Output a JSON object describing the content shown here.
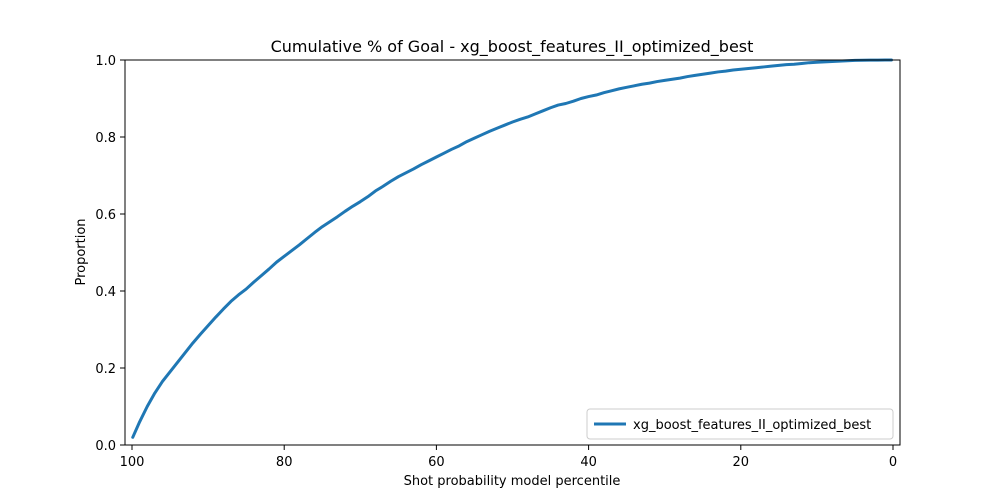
{
  "chart_data": {
    "type": "line",
    "title": "Cumulative % of Goal - xg_boost_features_II_optimized_best",
    "xlabel": "Shot probability model percentile",
    "ylabel": "Proportion",
    "xlim": [
      100,
      0
    ],
    "ylim": [
      0.0,
      1.0
    ],
    "x_inverted": true,
    "xticks": [
      100,
      80,
      60,
      40,
      20,
      0
    ],
    "xtick_labels": [
      "100",
      "80",
      "60",
      "40",
      "20",
      "0"
    ],
    "yticks": [
      0.0,
      0.2,
      0.4,
      0.6,
      0.8,
      1.0
    ],
    "ytick_labels": [
      "0.0",
      "0.2",
      "0.4",
      "0.6",
      "0.8",
      "1.0"
    ],
    "grid": false,
    "legend_position": "lower-right",
    "series": [
      {
        "name": "xg_boost_features_II_optimized_best",
        "color": "#1f77b4",
        "x": [
          99.9,
          99,
          98,
          97,
          96,
          95,
          94,
          93,
          92,
          91,
          90,
          89,
          88,
          87,
          86,
          85,
          84,
          83,
          82,
          81,
          80,
          79,
          78,
          77,
          76,
          75,
          74,
          73,
          72,
          71,
          70,
          69,
          68,
          67,
          66,
          65,
          64,
          63,
          62,
          61,
          60,
          59,
          58,
          57,
          56,
          55,
          54,
          53,
          52,
          51,
          50,
          49,
          48,
          47,
          46,
          45,
          44,
          43,
          42,
          41,
          40,
          39,
          38,
          37,
          36,
          35,
          34,
          33,
          32,
          31,
          30,
          29,
          28,
          27,
          26,
          25,
          24,
          23,
          22,
          21,
          20,
          19,
          18,
          17,
          16,
          15,
          14,
          13,
          12,
          11,
          10,
          9,
          8,
          7,
          6,
          5,
          4,
          3,
          2,
          1,
          0.2
        ],
        "y": [
          0.02,
          0.06,
          0.1,
          0.135,
          0.165,
          0.19,
          0.215,
          0.24,
          0.265,
          0.288,
          0.31,
          0.332,
          0.353,
          0.373,
          0.39,
          0.405,
          0.423,
          0.44,
          0.457,
          0.475,
          0.49,
          0.505,
          0.52,
          0.536,
          0.552,
          0.567,
          0.58,
          0.593,
          0.607,
          0.62,
          0.632,
          0.645,
          0.66,
          0.672,
          0.685,
          0.697,
          0.707,
          0.717,
          0.728,
          0.738,
          0.748,
          0.758,
          0.768,
          0.777,
          0.788,
          0.797,
          0.806,
          0.815,
          0.823,
          0.831,
          0.839,
          0.846,
          0.852,
          0.86,
          0.868,
          0.876,
          0.883,
          0.887,
          0.893,
          0.9,
          0.905,
          0.909,
          0.915,
          0.92,
          0.925,
          0.929,
          0.933,
          0.937,
          0.94,
          0.944,
          0.947,
          0.95,
          0.953,
          0.957,
          0.96,
          0.963,
          0.966,
          0.969,
          0.971,
          0.974,
          0.976,
          0.978,
          0.98,
          0.982,
          0.984,
          0.986,
          0.988,
          0.989,
          0.991,
          0.993,
          0.994,
          0.995,
          0.996,
          0.997,
          0.998,
          0.999,
          0.9993,
          0.9996,
          0.9998,
          0.9999,
          1.0
        ]
      }
    ]
  }
}
